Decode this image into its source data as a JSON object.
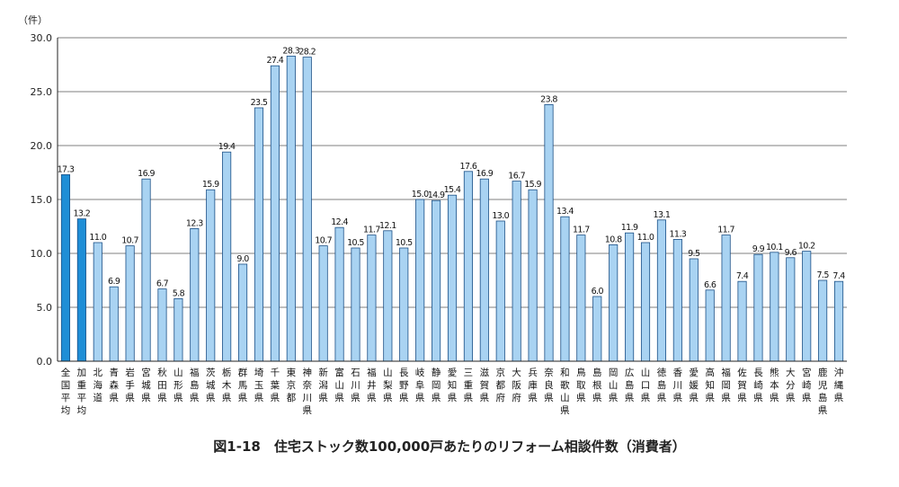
{
  "caption": "図1-18　住宅ストック数100,000戸あたりのリフォーム相談件数（消費者）",
  "chart_data": {
    "type": "bar",
    "ylabel": "（件）",
    "ylim": [
      0,
      30
    ],
    "yticks": [
      "0.0",
      "5.0",
      "10.0",
      "15.0",
      "20.0",
      "25.0",
      "30.0"
    ],
    "grid": true,
    "colors": {
      "highlight": "#1f8ed6",
      "bar": "#a9d3f2",
      "edge": "#1a4f86"
    },
    "categories": [
      "全国平均",
      "加重平均",
      "北海道",
      "青森県",
      "岩手県",
      "宮城県",
      "秋田県",
      "山形県",
      "福島県",
      "茨城県",
      "栃木県",
      "群馬県",
      "埼玉県",
      "千葉県",
      "東京都",
      "神奈川県",
      "新潟県",
      "富山県",
      "石川県",
      "福井県",
      "山梨県",
      "長野県",
      "岐阜県",
      "静岡県",
      "愛知県",
      "三重県",
      "滋賀県",
      "京都府",
      "大阪府",
      "兵庫県",
      "奈良県",
      "和歌山県",
      "鳥取県",
      "島根県",
      "岡山県",
      "広島県",
      "山口県",
      "徳島県",
      "香川県",
      "愛媛県",
      "高知県",
      "福岡県",
      "佐賀県",
      "長崎県",
      "熊本県",
      "大分県",
      "宮崎県",
      "鹿児島県",
      "沖縄県"
    ],
    "values": [
      17.3,
      13.2,
      11.0,
      6.9,
      10.7,
      16.9,
      6.7,
      5.8,
      12.3,
      15.9,
      19.4,
      9.0,
      23.5,
      27.4,
      28.3,
      28.2,
      10.7,
      12.4,
      10.5,
      11.7,
      12.1,
      10.5,
      15.0,
      14.9,
      15.4,
      17.6,
      16.9,
      13.0,
      16.7,
      15.9,
      23.8,
      13.4,
      11.7,
      6.0,
      10.8,
      11.9,
      11.0,
      13.1,
      11.3,
      9.5,
      6.6,
      11.7,
      7.4,
      9.9,
      10.1,
      9.6,
      10.2,
      7.5,
      7.4
    ],
    "value_labels": [
      "17.3",
      "13.2",
      "11.0",
      "6.9",
      "10.7",
      "16.9",
      "6.7",
      "5.8",
      "12.3",
      "15.9",
      "19.4",
      "9.0",
      "23.5",
      "27.4",
      "28.3",
      "28.2",
      "10.7",
      "12.4",
      "10.5",
      "11.7",
      "12.1",
      "10.5",
      "15.0",
      "14.9",
      "15.4",
      "17.6",
      "16.9",
      "13.0",
      "16.7",
      "15.9",
      "23.8",
      "13.4",
      "11.7",
      "6.0",
      "10.8",
      "11.9",
      "11.0",
      "13.1",
      "11.3",
      "9.5",
      "6.6",
      "11.7",
      "7.4",
      "9.9",
      "10.1",
      "9.6",
      "10.2",
      "7.5",
      "7.4"
    ],
    "highlighted": [
      "全国平均",
      "加重平均"
    ]
  }
}
